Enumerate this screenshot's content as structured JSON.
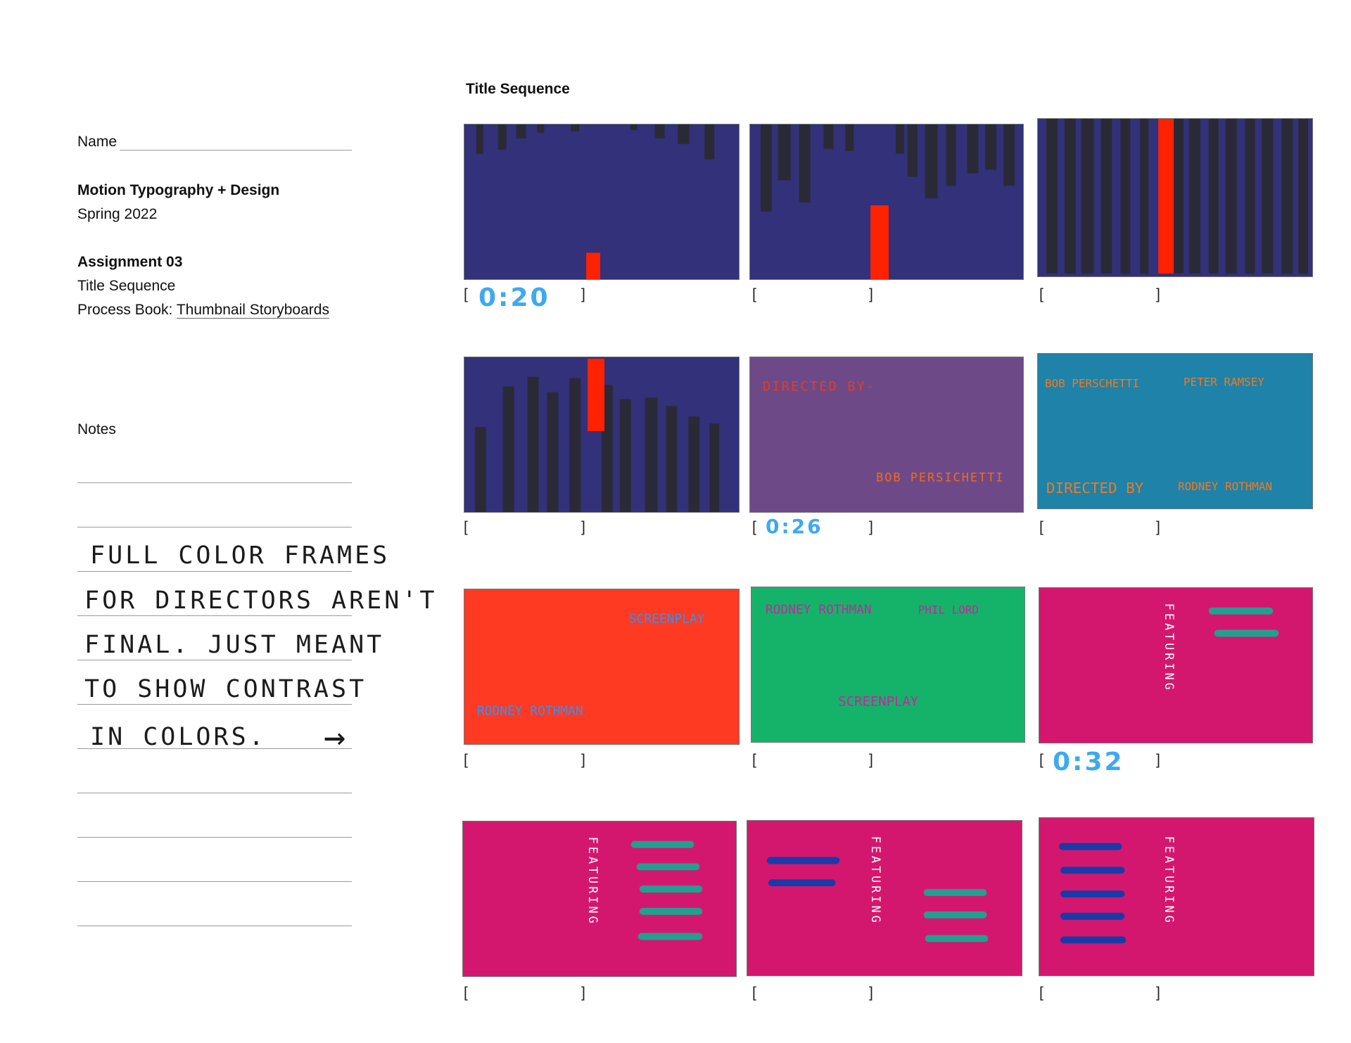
{
  "sheet": {
    "name_label": "Name",
    "course_title": "Motion Typography + Design",
    "term": "Spring 2022",
    "assignment_label": "Assignment 03",
    "assignment_title": "Title Sequence",
    "process_book_prefix": "Process Book: ",
    "process_book_link": "Thumbnail Storyboards",
    "notes_label": "Notes",
    "section_title": "Title Sequence"
  },
  "handwritten_note": {
    "lines": [
      "FULL COLOR FRAMES",
      "FOR DIRECTORS AREN'T",
      "FINAL. JUST MEANT",
      "TO SHOW CONTRAST",
      "IN COLORS."
    ],
    "arrow": "→"
  },
  "brackets": {
    "open": "[",
    "close": "]"
  },
  "timestamps": {
    "t1": "0:20",
    "t5": "0:26",
    "t9": "0:32"
  },
  "frames": {
    "f5": {
      "top": "DIRECTED BY-",
      "bottom": "BOB PERSICHETTI"
    },
    "f6": {
      "tl": "BOB PERSCHETTI",
      "tr": "PETER RAMSEY",
      "bl": "DIRECTED BY",
      "br": "RODNEY ROTHMAN"
    },
    "f7": {
      "top": "SCREENPLAY",
      "bottom": "RODNEY ROTHMAN"
    },
    "f8": {
      "tl": "RODNEY ROTHMAN",
      "tr": "PHIL LORD",
      "bottom": "SCREENPLAY"
    },
    "featuring": "FEATURING"
  },
  "colors": {
    "navy": "#323179",
    "stripe": "#2a2a36",
    "red": "#ff2200",
    "purple": "#6d4a87",
    "teal": "#1f82a8",
    "orange_red": "#ff3a22",
    "green": "#15b36a",
    "magenta": "#d4176e",
    "mint": "#22a08f",
    "cobalt": "#1a3aa8",
    "time_blue": "#3ea9f0"
  }
}
